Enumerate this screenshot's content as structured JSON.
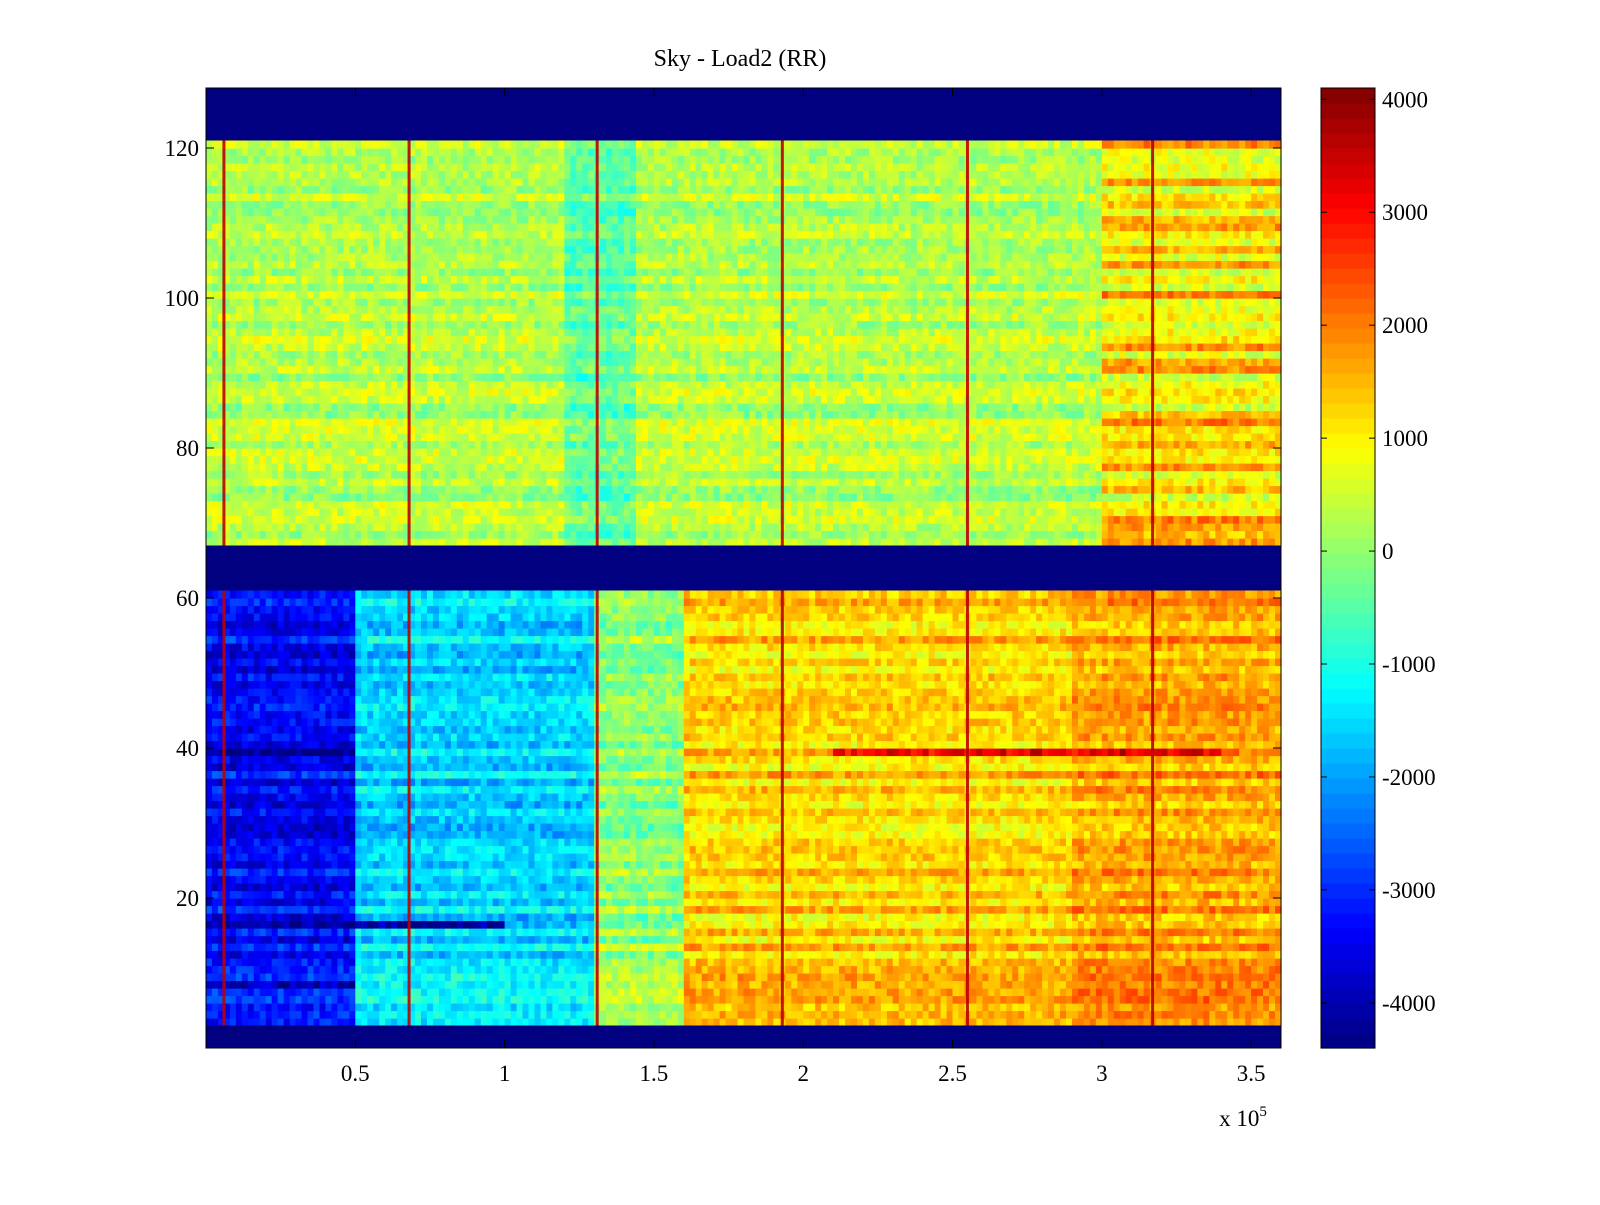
{
  "chart_data": {
    "type": "heatmap",
    "title": "Sky - Load2 (RR)",
    "xlabel": "",
    "ylabel": "",
    "xlim": [
      0,
      360000
    ],
    "ylim": [
      0,
      128
    ],
    "x_ticks": [
      50000,
      100000,
      150000,
      200000,
      250000,
      300000,
      350000
    ],
    "x_tick_labels": [
      "0.5",
      "1",
      "1.5",
      "2",
      "2.5",
      "3",
      "3.5"
    ],
    "x_multiplier": {
      "base": "x 10",
      "exponent": "5"
    },
    "y_ticks": [
      20,
      40,
      60,
      80,
      100,
      120
    ],
    "y_tick_labels": [
      "20",
      "40",
      "60",
      "80",
      "100",
      "120"
    ],
    "colorbar": {
      "colormap": "jet",
      "clim": [
        -4400,
        4100
      ],
      "ticks": [
        -4000,
        -3000,
        -2000,
        -1000,
        0,
        1000,
        2000,
        3000,
        4000
      ],
      "tick_labels": [
        "-4000",
        "-3000",
        "-2000",
        "-1000",
        "0",
        "1000",
        "2000",
        "3000",
        "4000"
      ]
    },
    "masked_row_bands": [
      [
        0,
        3
      ],
      [
        61,
        67
      ],
      [
        121,
        128
      ]
    ],
    "masked_value": -4400,
    "upper_block": {
      "rows": [
        67,
        121
      ],
      "typical_value": 300
    },
    "lower_block": {
      "rows": [
        3,
        61
      ],
      "segments": [
        {
          "x_range": [
            0,
            50000
          ],
          "typical_value": -3300
        },
        {
          "x_range": [
            50000,
            130000
          ],
          "typical_value": -1500
        },
        {
          "x_range": [
            130000,
            160000
          ],
          "typical_value": 0
        },
        {
          "x_range": [
            160000,
            360000
          ],
          "typical_value": 1300
        }
      ]
    },
    "hot_vertical_lines_x": [
      6000,
      68000,
      131000,
      193000,
      255000,
      317000
    ],
    "notable_rows": [
      {
        "row": 39,
        "description": "strong band",
        "x_range": [
          0,
          50000
        ],
        "value": -4300
      },
      {
        "row": 39,
        "description": "strong band",
        "x_range": [
          210000,
          340000
        ],
        "value": 3200
      },
      {
        "row": 16,
        "description": "cold band",
        "x_range": [
          0,
          100000
        ],
        "value": -4200
      },
      {
        "row": 8,
        "description": "cold band",
        "x_range": [
          0,
          50000
        ],
        "value": -3900
      }
    ]
  }
}
